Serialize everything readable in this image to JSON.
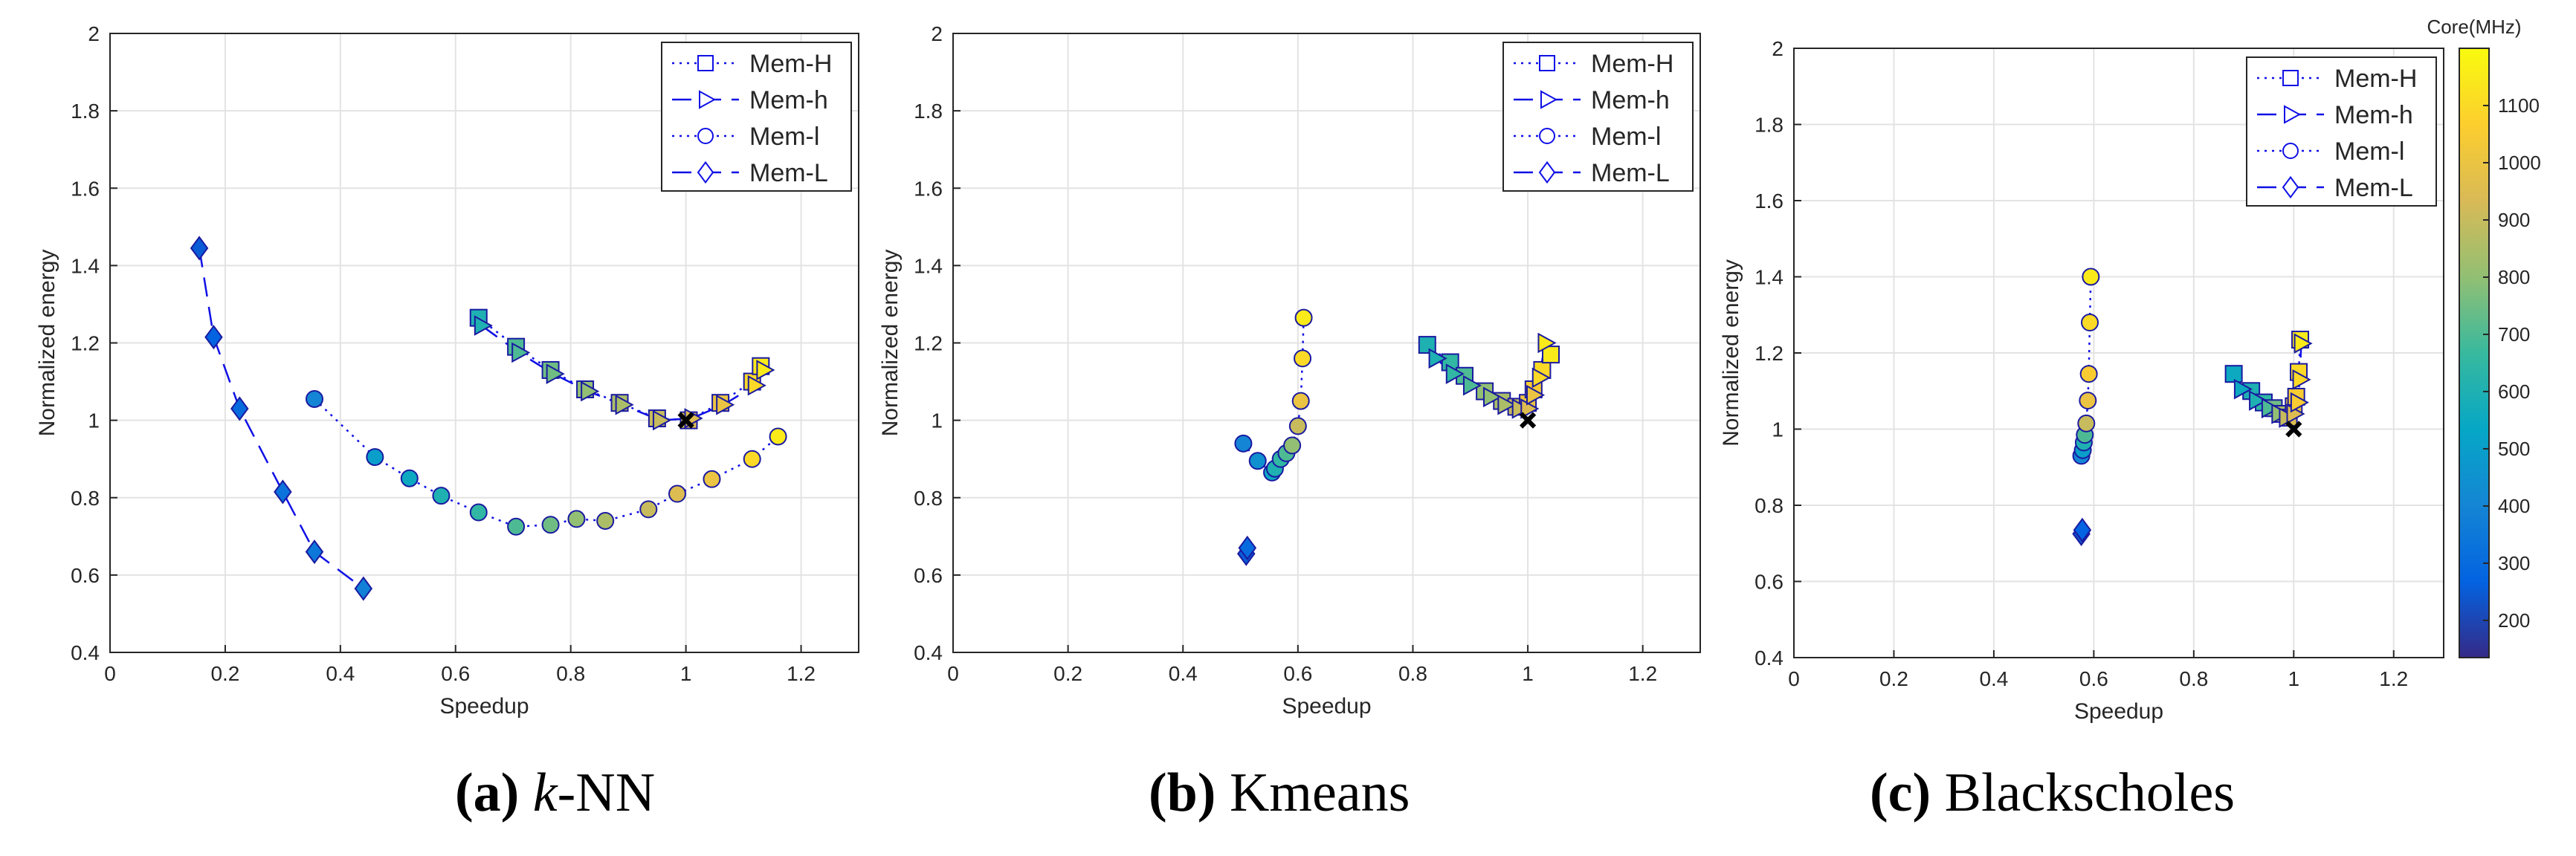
{
  "figure": {
    "background": "#ffffff",
    "grid_color": "#e3e3e3",
    "line_color": "#1010e6"
  },
  "captions": [
    {
      "label": "(a)",
      "text": "k-NN",
      "italic_prefix": "k",
      "rest": "-NN"
    },
    {
      "label": "(b)",
      "text": "Kmeans"
    },
    {
      "label": "(c)",
      "text": "Blackscholes"
    }
  ],
  "colorbar": {
    "title": "Core(MHz)",
    "range": [
      135,
      1200
    ],
    "ticks": [
      200,
      300,
      400,
      500,
      600,
      700,
      800,
      900,
      1000,
      1100
    ],
    "colormap": "parula",
    "stops": [
      "#352a87",
      "#0363e1",
      "#1485d4",
      "#06a7c6",
      "#38b99e",
      "#92bf73",
      "#d9ba56",
      "#fcce2e",
      "#f9fb0e"
    ]
  },
  "chart_data": [
    {
      "type": "scatter",
      "title": "k-NN",
      "xlabel": "Speedup",
      "ylabel": "Normalized energy",
      "xlim": [
        0,
        1.3
      ],
      "ylim": [
        0.4,
        2
      ],
      "xticks": [
        0,
        0.2,
        0.4,
        0.6,
        0.8,
        1,
        1.2
      ],
      "xtick_labels": [
        "0",
        "0.2",
        "0.4",
        "0.6",
        "0.8",
        "1",
        "1.2"
      ],
      "yticks": [
        0.4,
        0.6,
        0.8,
        1,
        1.2,
        1.4,
        1.6,
        1.8,
        2
      ],
      "ytick_labels": [
        "0.4",
        "0.6",
        "0.8",
        "1",
        "1.2",
        "1.4",
        "1.6",
        "1.8",
        "2"
      ],
      "legend_position": "top-right",
      "reference_point": {
        "x": 1,
        "y": 1,
        "marker": "x"
      },
      "series": [
        {
          "name": "Mem-H",
          "marker": "square",
          "line": "dotted",
          "points": [
            [
              0.64,
              1.265,
              600
            ],
            [
              0.705,
              1.19,
              700
            ],
            [
              0.765,
              1.13,
              750
            ],
            [
              0.825,
              1.08,
              800
            ],
            [
              0.885,
              1.045,
              850
            ],
            [
              0.95,
              1.005,
              900
            ],
            [
              1.005,
              1.0,
              950
            ],
            [
              1.06,
              1.045,
              1000
            ],
            [
              1.115,
              1.1,
              1100
            ],
            [
              1.13,
              1.14,
              1150
            ]
          ]
        },
        {
          "name": "Mem-h",
          "marker": "triangle-right",
          "line": "dashed",
          "points": [
            [
              0.645,
              1.245,
              600
            ],
            [
              0.71,
              1.175,
              700
            ],
            [
              0.77,
              1.12,
              750
            ],
            [
              0.83,
              1.075,
              800
            ],
            [
              0.89,
              1.04,
              850
            ],
            [
              0.955,
              1.0,
              900
            ],
            [
              1.01,
              1.005,
              950
            ],
            [
              1.065,
              1.04,
              1000
            ],
            [
              1.12,
              1.09,
              1100
            ],
            [
              1.135,
              1.13,
              1150
            ]
          ]
        },
        {
          "name": "Mem-l",
          "marker": "circle",
          "line": "dotted",
          "points": [
            [
              0.355,
              1.055,
              400
            ],
            [
              0.46,
              0.905,
              500
            ],
            [
              0.52,
              0.85,
              550
            ],
            [
              0.575,
              0.805,
              600
            ],
            [
              0.64,
              0.762,
              650
            ],
            [
              0.705,
              0.725,
              700
            ],
            [
              0.765,
              0.73,
              750
            ],
            [
              0.81,
              0.745,
              800
            ],
            [
              0.86,
              0.74,
              850
            ],
            [
              0.935,
              0.77,
              900
            ],
            [
              0.985,
              0.81,
              950
            ],
            [
              1.045,
              0.848,
              1000
            ],
            [
              1.115,
              0.9,
              1100
            ],
            [
              1.16,
              0.958,
              1150
            ]
          ]
        },
        {
          "name": "Mem-L",
          "marker": "diamond",
          "line": "dashed",
          "points": [
            [
              0.155,
              1.445,
              250
            ],
            [
              0.18,
              1.215,
              270
            ],
            [
              0.225,
              1.03,
              300
            ],
            [
              0.3,
              0.815,
              330
            ],
            [
              0.355,
              0.66,
              350
            ],
            [
              0.44,
              0.565,
              380
            ]
          ]
        }
      ]
    },
    {
      "type": "scatter",
      "title": "Kmeans",
      "xlabel": "Speedup",
      "ylabel": "Normalized energy",
      "xlim": [
        0,
        1.3
      ],
      "ylim": [
        0.4,
        2
      ],
      "xticks": [
        0,
        0.2,
        0.4,
        0.6,
        0.8,
        1,
        1.2
      ],
      "xtick_labels": [
        "0",
        "0.2",
        "0.4",
        "0.6",
        "0.8",
        "1",
        "1.2"
      ],
      "yticks": [
        0.4,
        0.6,
        0.8,
        1,
        1.2,
        1.4,
        1.6,
        1.8,
        2
      ],
      "ytick_labels": [
        "0.4",
        "0.6",
        "0.8",
        "1",
        "1.2",
        "1.4",
        "1.6",
        "1.8",
        "2"
      ],
      "legend_position": "top-right",
      "reference_point": {
        "x": 1,
        "y": 1,
        "marker": "x"
      },
      "series": [
        {
          "name": "Mem-H",
          "marker": "square",
          "line": "dotted",
          "points": [
            [
              0.825,
              1.195,
              600
            ],
            [
              0.865,
              1.15,
              650
            ],
            [
              0.89,
              1.115,
              700
            ],
            [
              0.925,
              1.075,
              800
            ],
            [
              0.955,
              1.05,
              850
            ],
            [
              0.98,
              1.035,
              900
            ],
            [
              1.0,
              1.045,
              1000
            ],
            [
              1.01,
              1.08,
              1050
            ],
            [
              1.025,
              1.13,
              1100
            ],
            [
              1.04,
              1.17,
              1150
            ]
          ]
        },
        {
          "name": "Mem-h",
          "marker": "triangle-right",
          "line": "dashed",
          "points": [
            [
              0.84,
              1.16,
              600
            ],
            [
              0.87,
              1.12,
              650
            ],
            [
              0.9,
              1.09,
              700
            ],
            [
              0.935,
              1.06,
              800
            ],
            [
              0.96,
              1.04,
              850
            ],
            [
              0.985,
              1.03,
              900
            ],
            [
              1.0,
              1.03,
              950
            ],
            [
              1.01,
              1.065,
              1000
            ],
            [
              1.02,
              1.11,
              1100
            ],
            [
              1.03,
              1.2,
              1150
            ]
          ]
        },
        {
          "name": "Mem-l",
          "marker": "circle",
          "line": "dotted",
          "points": [
            [
              0.505,
              0.94,
              400
            ],
            [
              0.53,
              0.895,
              450
            ],
            [
              0.555,
              0.865,
              550
            ],
            [
              0.56,
              0.875,
              600
            ],
            [
              0.57,
              0.9,
              650
            ],
            [
              0.58,
              0.915,
              700
            ],
            [
              0.59,
              0.935,
              800
            ],
            [
              0.6,
              0.985,
              900
            ],
            [
              0.605,
              1.05,
              1000
            ],
            [
              0.608,
              1.16,
              1100
            ],
            [
              0.61,
              1.265,
              1150
            ]
          ]
        },
        {
          "name": "Mem-L",
          "marker": "diamond",
          "line": "dashed",
          "points": [
            [
              0.51,
              0.655,
              250
            ],
            [
              0.512,
              0.67,
              300
            ]
          ]
        }
      ]
    },
    {
      "type": "scatter",
      "title": "Blackscholes",
      "xlabel": "Speedup",
      "ylabel": "Normalized energy",
      "xlim": [
        0,
        1.3
      ],
      "ylim": [
        0.4,
        2
      ],
      "xticks": [
        0,
        0.2,
        0.4,
        0.6,
        0.8,
        1,
        1.2
      ],
      "xtick_labels": [
        "0",
        "0.2",
        "0.4",
        "0.6",
        "0.8",
        "1",
        "1.2"
      ],
      "yticks": [
        0.4,
        0.6,
        0.8,
        1,
        1.2,
        1.4,
        1.6,
        1.8,
        2
      ],
      "ytick_labels": [
        "0.4",
        "0.6",
        "0.8",
        "1",
        "1.2",
        "1.4",
        "1.6",
        "1.8",
        "2"
      ],
      "legend_position": "top-right",
      "reference_point": {
        "x": 1,
        "y": 1,
        "marker": "x"
      },
      "series": [
        {
          "name": "Mem-H",
          "marker": "square",
          "line": "dotted",
          "points": [
            [
              0.88,
              1.145,
              550
            ],
            [
              0.915,
              1.1,
              600
            ],
            [
              0.94,
              1.07,
              650
            ],
            [
              0.96,
              1.055,
              750
            ],
            [
              0.975,
              1.04,
              850
            ],
            [
              0.99,
              1.03,
              950
            ],
            [
              1.0,
              1.06,
              1000
            ],
            [
              1.005,
              1.085,
              1050
            ],
            [
              1.01,
              1.15,
              1100
            ],
            [
              1.013,
              1.235,
              1150
            ]
          ]
        },
        {
          "name": "Mem-h",
          "marker": "triangle-right",
          "line": "dashed",
          "points": [
            [
              0.895,
              1.105,
              550
            ],
            [
              0.925,
              1.075,
              600
            ],
            [
              0.95,
              1.055,
              700
            ],
            [
              0.97,
              1.04,
              800
            ],
            [
              0.985,
              1.03,
              900
            ],
            [
              1.0,
              1.04,
              950
            ],
            [
              1.008,
              1.07,
              1050
            ],
            [
              1.012,
              1.13,
              1100
            ],
            [
              1.015,
              1.225,
              1150
            ]
          ]
        },
        {
          "name": "Mem-l",
          "marker": "circle",
          "line": "dotted",
          "points": [
            [
              0.575,
              0.93,
              400
            ],
            [
              0.578,
              0.945,
              500
            ],
            [
              0.58,
              0.965,
              600
            ],
            [
              0.582,
              0.985,
              700
            ],
            [
              0.585,
              1.015,
              900
            ],
            [
              0.588,
              1.075,
              1000
            ],
            [
              0.59,
              1.145,
              1050
            ],
            [
              0.592,
              1.28,
              1100
            ],
            [
              0.594,
              1.4,
              1150
            ]
          ]
        },
        {
          "name": "Mem-L",
          "marker": "diamond",
          "line": "dashed",
          "points": [
            [
              0.575,
              0.725,
              230
            ],
            [
              0.577,
              0.735,
              270
            ]
          ]
        }
      ]
    }
  ]
}
